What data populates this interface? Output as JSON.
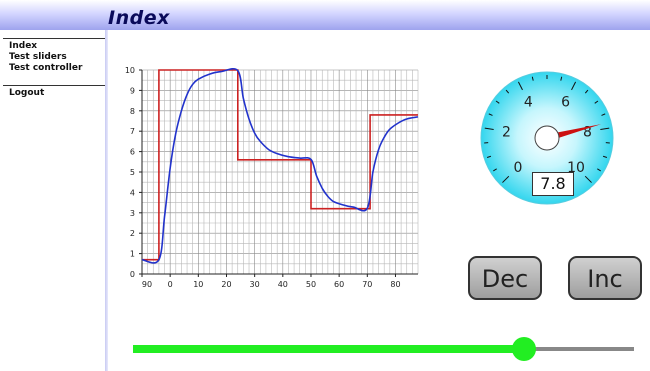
{
  "header": {
    "title": "Index"
  },
  "sidebar": {
    "items": [
      {
        "label": "Index"
      },
      {
        "label": "Test sliders"
      },
      {
        "label": "Test controller"
      }
    ],
    "logout": "Logout"
  },
  "chart_data": {
    "type": "line",
    "x_ticks": [
      "90",
      "0",
      "10",
      "20",
      "30",
      "40",
      "50",
      "60",
      "70",
      "80"
    ],
    "y_ticks": [
      0,
      1,
      2,
      3,
      4,
      5,
      6,
      7,
      8,
      9,
      10
    ],
    "xlim": [
      -10,
      88
    ],
    "ylim": [
      0,
      10
    ],
    "grid": true,
    "series": [
      {
        "color": "#cc2222",
        "style": "step",
        "points": [
          [
            -10,
            0.7
          ],
          [
            -4,
            0.7
          ],
          [
            -4,
            10
          ],
          [
            24,
            10
          ],
          [
            24,
            5.6
          ],
          [
            50,
            5.6
          ],
          [
            50,
            3.2
          ],
          [
            71,
            3.2
          ],
          [
            71,
            7.8
          ],
          [
            88,
            7.8
          ]
        ]
      },
      {
        "color": "#2233cc",
        "style": "smooth",
        "points": [
          [
            -10,
            0.7
          ],
          [
            -4,
            0.7
          ],
          [
            -2,
            2.8
          ],
          [
            0,
            5.2
          ],
          [
            2,
            6.9
          ],
          [
            4,
            8.0
          ],
          [
            6,
            8.8
          ],
          [
            8,
            9.3
          ],
          [
            10,
            9.55
          ],
          [
            14,
            9.8
          ],
          [
            18,
            9.92
          ],
          [
            24,
            9.97
          ],
          [
            26,
            8.6
          ],
          [
            28,
            7.6
          ],
          [
            30,
            6.9
          ],
          [
            32,
            6.5
          ],
          [
            35,
            6.1
          ],
          [
            38,
            5.9
          ],
          [
            42,
            5.75
          ],
          [
            46,
            5.68
          ],
          [
            50,
            5.62
          ],
          [
            52,
            4.8
          ],
          [
            54,
            4.2
          ],
          [
            56,
            3.8
          ],
          [
            58,
            3.55
          ],
          [
            61,
            3.4
          ],
          [
            65,
            3.28
          ],
          [
            70,
            3.22
          ],
          [
            72,
            5.0
          ],
          [
            74,
            6.1
          ],
          [
            76,
            6.7
          ],
          [
            78,
            7.1
          ],
          [
            81,
            7.4
          ],
          [
            84,
            7.6
          ],
          [
            88,
            7.7
          ]
        ]
      }
    ]
  },
  "gauge": {
    "value": "7.8",
    "value_number": 7.8,
    "min": 0,
    "max": 10,
    "labels": [
      "0",
      "2",
      "4",
      "6",
      "8",
      "10"
    ],
    "needle_color": "#cc1111",
    "face_color": "#33d6ee"
  },
  "buttons": {
    "dec": "Dec",
    "inc": "Inc"
  },
  "slider": {
    "value": 0.78,
    "color": "#22ee22"
  }
}
